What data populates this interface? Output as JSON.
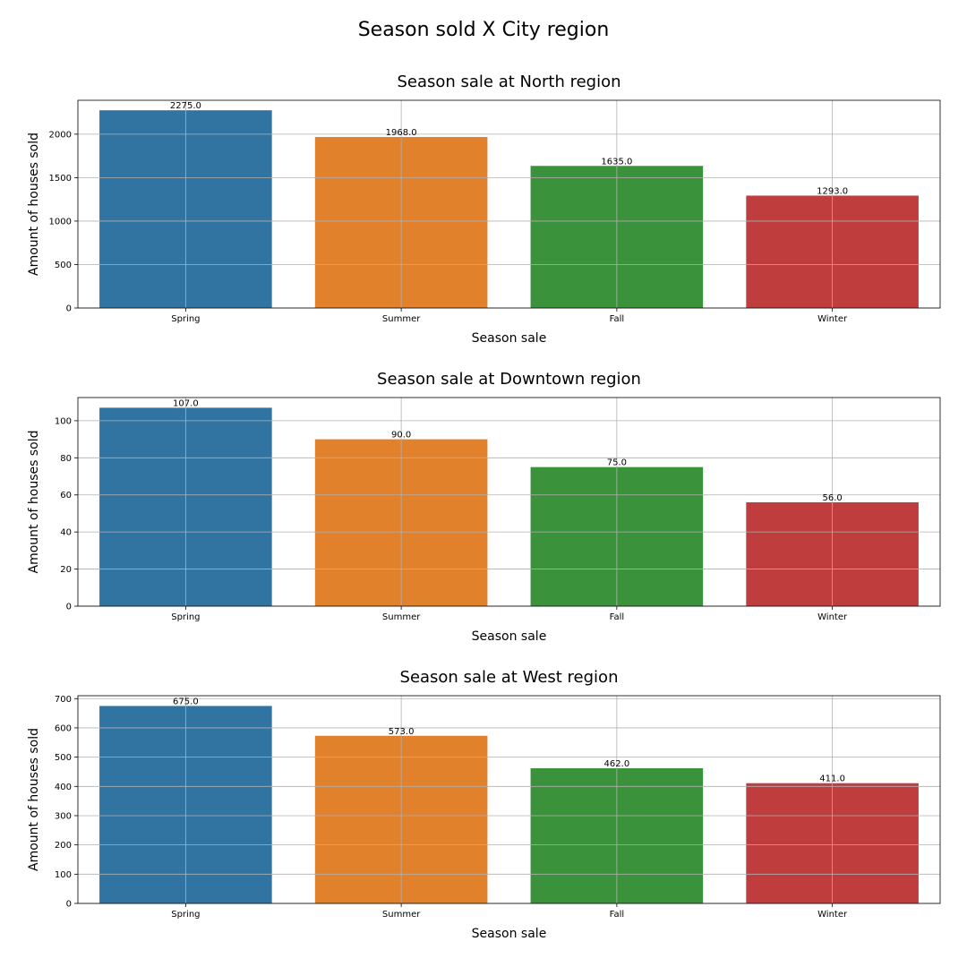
{
  "figure": {
    "title": "Season sold X City region"
  },
  "chart_data": [
    {
      "type": "bar",
      "title": "Season sale at North region",
      "xlabel": "Season sale",
      "ylabel": "Amount of houses sold",
      "categories": [
        "Spring",
        "Summer",
        "Fall",
        "Winter"
      ],
      "values": [
        2275.0,
        1968.0,
        1635.0,
        1293.0
      ],
      "data_labels": [
        "2275.0",
        "1968.0",
        "1635.0",
        "1293.0"
      ],
      "ylim": [
        0,
        2390
      ],
      "yticks": [
        0,
        500,
        1000,
        1500,
        2000
      ],
      "grid": true,
      "colors": [
        "#3274a1",
        "#e1812c",
        "#3a923a",
        "#c03d3e"
      ]
    },
    {
      "type": "bar",
      "title": "Season sale at Downtown region",
      "xlabel": "Season sale",
      "ylabel": "Amount of houses sold",
      "categories": [
        "Spring",
        "Summer",
        "Fall",
        "Winter"
      ],
      "values": [
        107.0,
        90.0,
        75.0,
        56.0
      ],
      "data_labels": [
        "107.0",
        "90.0",
        "75.0",
        "56.0"
      ],
      "ylim": [
        0,
        112.5
      ],
      "yticks": [
        0,
        20,
        40,
        60,
        80,
        100
      ],
      "grid": true,
      "colors": [
        "#3274a1",
        "#e1812c",
        "#3a923a",
        "#c03d3e"
      ]
    },
    {
      "type": "bar",
      "title": "Season sale at West region",
      "xlabel": "Season sale",
      "ylabel": "Amount of houses sold",
      "categories": [
        "Spring",
        "Summer",
        "Fall",
        "Winter"
      ],
      "values": [
        675.0,
        573.0,
        462.0,
        411.0
      ],
      "data_labels": [
        "675.0",
        "573.0",
        "462.0",
        "411.0"
      ],
      "ylim": [
        0,
        710
      ],
      "yticks": [
        0,
        100,
        200,
        300,
        400,
        500,
        600,
        700
      ],
      "grid": true,
      "colors": [
        "#3274a1",
        "#e1812c",
        "#3a923a",
        "#c03d3e"
      ]
    }
  ]
}
